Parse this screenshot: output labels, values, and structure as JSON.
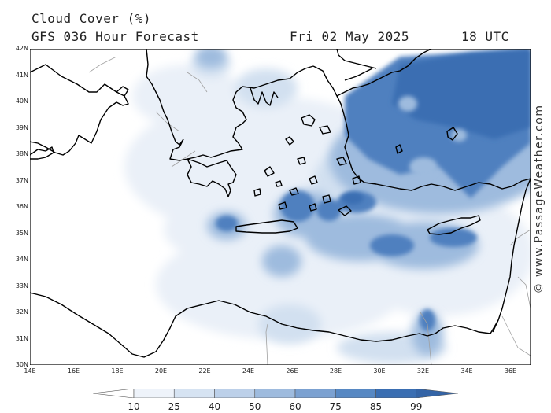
{
  "header": {
    "title": "Cloud Cover (%)",
    "model": "GFS 036 Hour Forecast",
    "date": "Fri 02 May 2025",
    "time": "18 UTC"
  },
  "credit": "© www.PassageWeather.com",
  "lat_labels": [
    "42N",
    "41N",
    "40N",
    "39N",
    "38N",
    "37N",
    "36N",
    "35N",
    "34N",
    "33N",
    "32N",
    "31N",
    "30N"
  ],
  "lon_labels": [
    "14E",
    "16E",
    "18E",
    "20E",
    "22E",
    "24E",
    "26E",
    "28E",
    "30E",
    "32E",
    "34E",
    "36E"
  ],
  "legend": {
    "ticks": [
      "10",
      "25",
      "40",
      "50",
      "60",
      "75",
      "85",
      "99"
    ],
    "colors": [
      "#ffffff",
      "#eef3fa",
      "#d6e3f2",
      "#bcd0e9",
      "#9ebbde",
      "#7ba1d1",
      "#5788c3",
      "#3a6eb2",
      "#3464a6"
    ]
  },
  "colors": {
    "land_border": "#000000",
    "country_border": "#999999",
    "cloud_dark": "#3a6eb2"
  }
}
